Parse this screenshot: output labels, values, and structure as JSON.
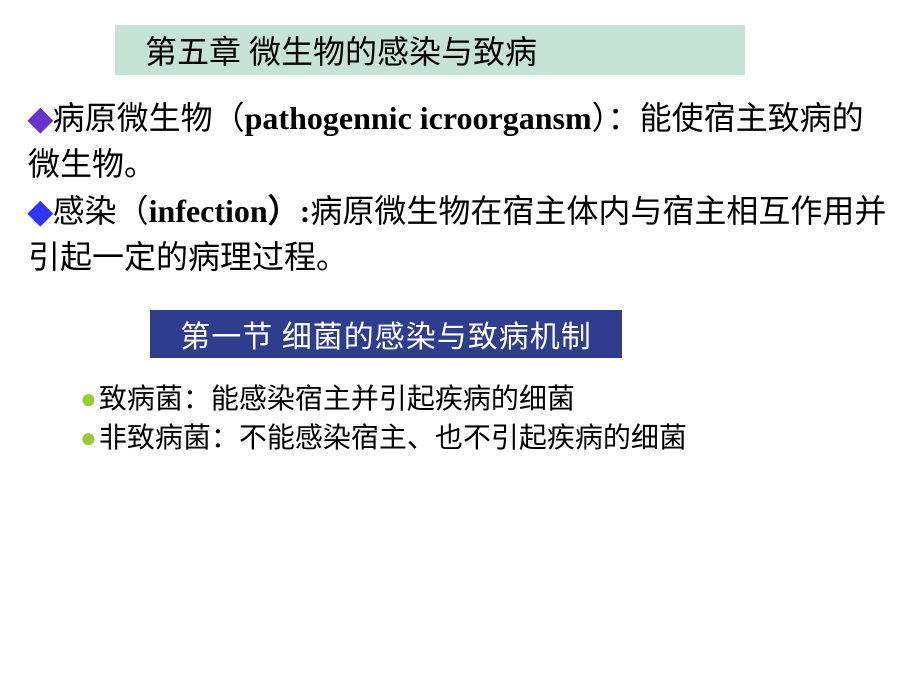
{
  "colors": {
    "background": "#ffffff",
    "chapter_title_bg": "#c7e3d5",
    "section_title_bg": "#2f3d8f",
    "section_title_text": "#ffffff",
    "body_text": "#000000",
    "diamond_purple": "#6633cc",
    "diamond_blue": "#3333ff",
    "circle_bullet": "#99cc33"
  },
  "typography": {
    "chapter_title_fontsize": 32,
    "body_fontsize": 32,
    "section_title_fontsize": 30,
    "bullet_fontsize": 28,
    "font_family": "SimSun"
  },
  "chapter_title": "第五章 微生物的感染与致病",
  "definitions": [
    {
      "bullet_color": "diamond-purple",
      "term": "病原微生物（",
      "english": "pathogennic icroorgansm",
      "suffix": "）：",
      "description": "能使宿主致病的微生物。"
    },
    {
      "bullet_color": "diamond-blue",
      "term": "感染（",
      "english": "infection",
      "suffix": "）:",
      "description": "病原微生物在宿主体内与宿主相互作用并引起一定的病理过程。"
    }
  ],
  "section_title": "第一节  细菌的感染与致病机制",
  "bullet_points": [
    "致病菌：能感染宿主并引起疾病的细菌",
    "非致病菌：不能感染宿主、也不引起疾病的细菌"
  ]
}
